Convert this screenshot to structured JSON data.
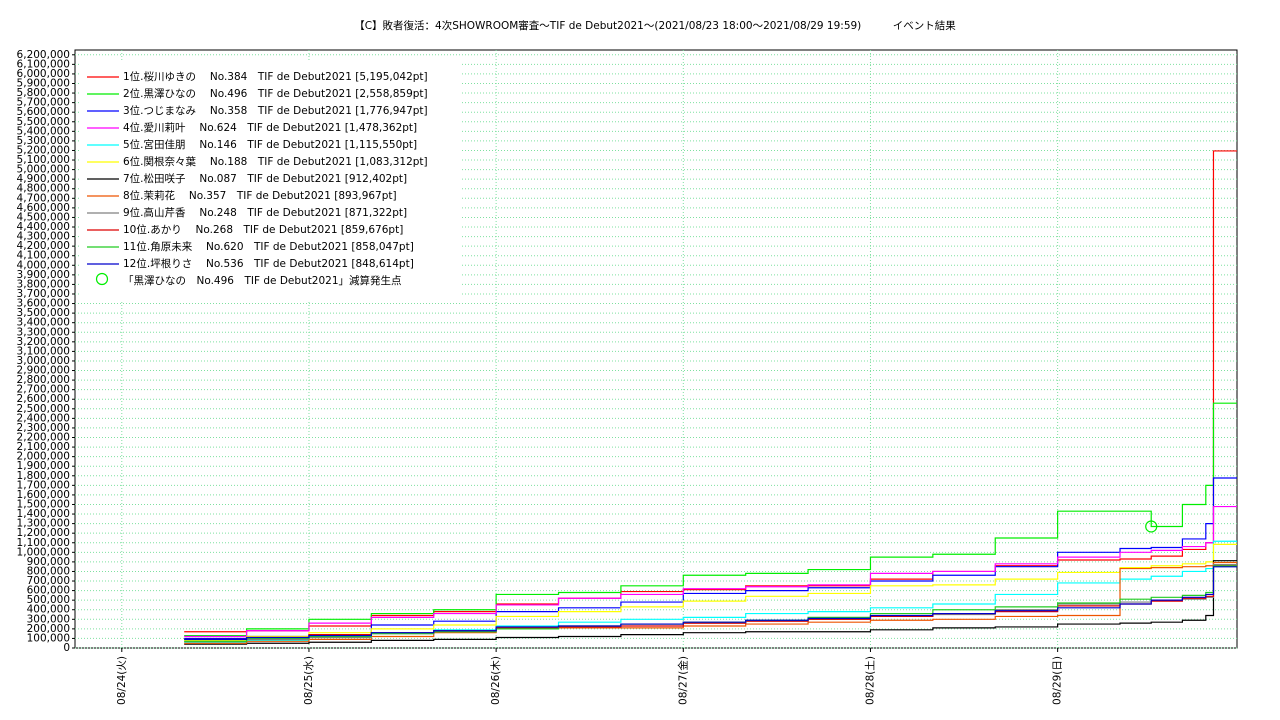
{
  "chart_data": {
    "type": "line",
    "stepped": true,
    "grid": true,
    "title": "【C】敗者復活：4次SHOWROOM審査～TIF de Debut2021～(2021/08/23 18:00～2021/08/29 19:59)　　　イベント結果",
    "x": [
      "2021-08-24T08:00",
      "2021-08-24T16:00",
      "2021-08-25T00:00",
      "2021-08-25T08:00",
      "2021-08-25T16:00",
      "2021-08-26T00:00",
      "2021-08-26T08:00",
      "2021-08-26T16:00",
      "2021-08-27T00:00",
      "2021-08-27T08:00",
      "2021-08-27T16:00",
      "2021-08-28T00:00",
      "2021-08-28T08:00",
      "2021-08-28T16:00",
      "2021-08-29T00:00",
      "2021-08-29T08:00",
      "2021-08-29T12:00",
      "2021-08-29T16:00",
      "2021-08-29T19:00",
      "2021-08-29T19:59",
      "2021-08-29T23:00"
    ],
    "xlim": [
      "2021-08-23T18:00",
      "2021-08-29T23:00"
    ],
    "xticks": [
      {
        "value": "2021-08-24T00:00",
        "label": "08/24(火)"
      },
      {
        "value": "2021-08-25T00:00",
        "label": "08/25(水)"
      },
      {
        "value": "2021-08-26T00:00",
        "label": "08/26(木)"
      },
      {
        "value": "2021-08-27T00:00",
        "label": "08/27(金)"
      },
      {
        "value": "2021-08-28T00:00",
        "label": "08/28(土)"
      },
      {
        "value": "2021-08-29T00:00",
        "label": "08/29(日)"
      }
    ],
    "ylim": [
      0,
      6250000
    ],
    "yticks": [
      0,
      {
        "value": 100000,
        "label": "100,000"
      },
      {
        "value": 200000,
        "label": "200,000"
      },
      {
        "value": 300000,
        "label": "300,000"
      },
      {
        "value": 400000,
        "label": "400,000"
      },
      {
        "value": 500000,
        "label": "500,000"
      },
      {
        "value": 600000,
        "label": "600,000"
      },
      {
        "value": 700000,
        "label": "700,000"
      },
      {
        "value": 800000,
        "label": "800,000"
      },
      {
        "value": 900000,
        "label": "900,000"
      },
      {
        "value": 1000000,
        "label": "1,000,000"
      },
      {
        "value": 1100000,
        "label": "1,100,000"
      },
      {
        "value": 1200000,
        "label": "1,200,000"
      },
      {
        "value": 1300000,
        "label": "1,300,000"
      },
      {
        "value": 1400000,
        "label": "1,400,000"
      },
      {
        "value": 1500000,
        "label": "1,500,000"
      },
      {
        "value": 1600000,
        "label": "1,600,000"
      },
      {
        "value": 1700000,
        "label": "1,700,000"
      },
      {
        "value": 1800000,
        "label": "1,800,000"
      },
      {
        "value": 1900000,
        "label": "1,900,000"
      },
      {
        "value": 2000000,
        "label": "2,000,000"
      },
      {
        "value": 2100000,
        "label": "2,100,000"
      },
      {
        "value": 2200000,
        "label": "2,200,000"
      },
      {
        "value": 2300000,
        "label": "2,300,000"
      },
      {
        "value": 2400000,
        "label": "2,400,000"
      },
      {
        "value": 2500000,
        "label": "2,500,000"
      },
      {
        "value": 2600000,
        "label": "2,600,000"
      },
      {
        "value": 2700000,
        "label": "2,700,000"
      },
      {
        "value": 2800000,
        "label": "2,800,000"
      },
      {
        "value": 2900000,
        "label": "2,900,000"
      },
      {
        "value": 3000000,
        "label": "3,000,000"
      },
      {
        "value": 3100000,
        "label": "3,100,000"
      },
      {
        "value": 3200000,
        "label": "3,200,000"
      },
      {
        "value": 3300000,
        "label": "3,300,000"
      },
      {
        "value": 3400000,
        "label": "3,400,000"
      },
      {
        "value": 3500000,
        "label": "3,500,000"
      },
      {
        "value": 3600000,
        "label": "3,600,000"
      },
      {
        "value": 3700000,
        "label": "3,700,000"
      },
      {
        "value": 3800000,
        "label": "3,800,000"
      },
      {
        "value": 3900000,
        "label": "3,900,000"
      },
      {
        "value": 4000000,
        "label": "4,000,000"
      },
      {
        "value": 4100000,
        "label": "4,100,000"
      },
      {
        "value": 4200000,
        "label": "4,200,000"
      },
      {
        "value": 4300000,
        "label": "4,300,000"
      },
      {
        "value": 4400000,
        "label": "4,400,000"
      },
      {
        "value": 4500000,
        "label": "4,500,000"
      },
      {
        "value": 4600000,
        "label": "4,600,000"
      },
      {
        "value": 4700000,
        "label": "4,700,000"
      },
      {
        "value": 4800000,
        "label": "4,800,000"
      },
      {
        "value": 4900000,
        "label": "4,900,000"
      },
      {
        "value": 5000000,
        "label": "5,000,000"
      },
      {
        "value": 5100000,
        "label": "5,100,000"
      },
      {
        "value": 5200000,
        "label": "5,200,000"
      },
      {
        "value": 5300000,
        "label": "5,300,000"
      },
      {
        "value": 5400000,
        "label": "5,400,000"
      },
      {
        "value": 5500000,
        "label": "5,500,000"
      },
      {
        "value": 5600000,
        "label": "5,600,000"
      },
      {
        "value": 5700000,
        "label": "5,700,000"
      },
      {
        "value": 5800000,
        "label": "5,800,000"
      },
      {
        "value": 5900000,
        "label": "5,900,000"
      },
      {
        "value": 6000000,
        "label": "6,000,000"
      },
      {
        "value": 6100000,
        "label": "6,100,000"
      },
      {
        "value": 6200000,
        "label": "6,200,000"
      }
    ],
    "series": [
      {
        "name": "1位.桜川ゆきの　 No.384　TIF de Debut2021 [5,195,042pt]",
        "color": "#ff0000",
        "values": [
          170000,
          180000,
          230000,
          340000,
          380000,
          460000,
          520000,
          590000,
          610000,
          650000,
          650000,
          720000,
          800000,
          860000,
          920000,
          930000,
          960000,
          1030000,
          1100000,
          5195042,
          5195042
        ]
      },
      {
        "name": "2位.黒澤ひなの　 No.496　TIF de Debut2021 [2,558,859pt]",
        "color": "#00ee00",
        "values": [
          130000,
          200000,
          300000,
          360000,
          400000,
          560000,
          580000,
          650000,
          760000,
          780000,
          820000,
          950000,
          980000,
          1150000,
          1430000,
          1430000,
          1270000,
          1500000,
          1700000,
          2558859,
          2558859
        ]
      },
      {
        "name": "3位.つじまなみ　 No.358　TIF de Debut2021 [1,776,947pt]",
        "color": "#0000ff",
        "values": [
          100000,
          120000,
          140000,
          240000,
          280000,
          380000,
          420000,
          480000,
          570000,
          600000,
          630000,
          700000,
          760000,
          850000,
          1000000,
          1040000,
          1050000,
          1140000,
          1300000,
          1776947,
          1776947
        ]
      },
      {
        "name": "4位.愛川莉叶　 No.624　TIF de Debut2021 [1,478,362pt]",
        "color": "#ff00ff",
        "values": [
          120000,
          180000,
          260000,
          320000,
          360000,
          450000,
          520000,
          560000,
          620000,
          640000,
          660000,
          780000,
          800000,
          880000,
          950000,
          1000000,
          1020000,
          1060000,
          1100000,
          1478362,
          1478362
        ]
      },
      {
        "name": "5位.宮田佳朋　 No.146　TIF de Debut2021 [1,115,550pt]",
        "color": "#00ffff",
        "values": [
          60000,
          80000,
          120000,
          160000,
          190000,
          230000,
          270000,
          300000,
          320000,
          360000,
          380000,
          420000,
          460000,
          560000,
          680000,
          720000,
          750000,
          800000,
          830000,
          1115550,
          1115550
        ]
      },
      {
        "name": "6位.関根奈々葉　 No.188　TIF de Debut2021 [1,083,312pt]",
        "color": "#ffff00",
        "values": [
          80000,
          120000,
          160000,
          200000,
          240000,
          330000,
          380000,
          430000,
          490000,
          540000,
          570000,
          650000,
          660000,
          720000,
          790000,
          840000,
          860000,
          880000,
          900000,
          1083312,
          1083312
        ]
      },
      {
        "name": "7位.松田咲子　 No.087　TIF de Debut2021 [912,402pt]",
        "color": "#000000",
        "values": [
          40000,
          50000,
          60000,
          80000,
          90000,
          110000,
          120000,
          140000,
          160000,
          170000,
          170000,
          190000,
          210000,
          220000,
          250000,
          260000,
          270000,
          290000,
          340000,
          912402,
          912402
        ]
      },
      {
        "name": "8位.茉莉花　 No.357　TIF de Debut2021 [893,967pt]",
        "color": "#ee5500",
        "values": [
          50000,
          70000,
          90000,
          120000,
          160000,
          200000,
          210000,
          210000,
          230000,
          250000,
          270000,
          290000,
          300000,
          330000,
          340000,
          830000,
          840000,
          850000,
          860000,
          893967,
          893967
        ]
      },
      {
        "name": "9位.高山芹香　 No.248　TIF de Debut2021 [871,322pt]",
        "color": "#808080",
        "values": [
          70000,
          90000,
          110000,
          150000,
          180000,
          210000,
          220000,
          250000,
          260000,
          280000,
          300000,
          330000,
          350000,
          400000,
          460000,
          480000,
          500000,
          510000,
          530000,
          871322,
          871322
        ]
      },
      {
        "name": "10位.あかり　 No.268　TIF de Debut2021 [859,676pt]",
        "color": "#dd0000",
        "values": [
          90000,
          110000,
          140000,
          160000,
          180000,
          210000,
          220000,
          230000,
          260000,
          280000,
          300000,
          330000,
          360000,
          380000,
          440000,
          460000,
          490000,
          520000,
          540000,
          859676,
          859676
        ]
      },
      {
        "name": "11位.角原未来　 No.620　TIF de Debut2021 [858,047pt]",
        "color": "#22cc22",
        "values": [
          70000,
          100000,
          120000,
          150000,
          170000,
          200000,
          230000,
          250000,
          270000,
          290000,
          320000,
          360000,
          400000,
          430000,
          470000,
          510000,
          530000,
          550000,
          580000,
          858047,
          858047
        ]
      },
      {
        "name": "12位.坪根りさ　 No.536　TIF de Debut2021 [848,614pt]",
        "color": "#0000cc",
        "values": [
          90000,
          110000,
          130000,
          160000,
          180000,
          220000,
          230000,
          250000,
          270000,
          290000,
          310000,
          340000,
          360000,
          390000,
          420000,
          460000,
          500000,
          530000,
          560000,
          848614,
          848614
        ]
      }
    ],
    "markers": [
      {
        "label": "「黒澤ひなの　No.496　TIF de Debut2021」減算発生点",
        "x": "2021-08-29T12:00",
        "y": 1270000,
        "color": "#00ee00"
      }
    ]
  }
}
